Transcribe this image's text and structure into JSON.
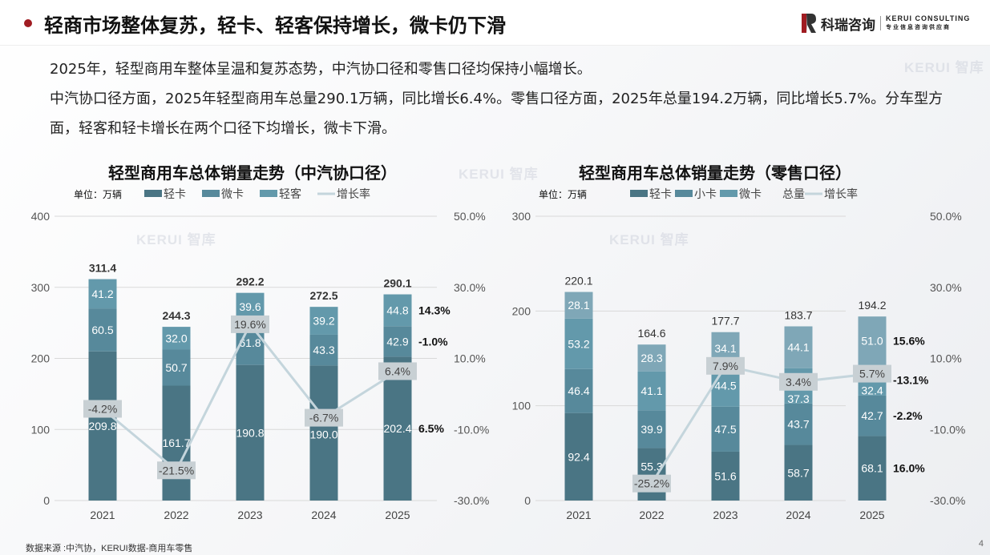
{
  "header": {
    "title": "轻商市场整体复苏，轻卡、轻客保持增长，微卡仍下滑",
    "logo_cn": "科瑞咨询",
    "logo_en": "KERUI CONSULTING",
    "logo_tagline": "专业信息咨询供应商"
  },
  "paragraph": [
    "2025年，轻型商用车整体呈温和复苏态势，中汽协口径和零售口径均保持小幅增长。",
    "中汽协口径方面，2025年轻型商用车总量290.1万辆，同比增长6.4%。零售口径方面，2025年总量194.2万辆，同比增长5.7%。分车型方面，轻客和轻卡增长在两个口径下均增长，微卡下滑。"
  ],
  "watermark": "KERUI 智库",
  "footer": {
    "source": "数据来源 :中汽协，KERUI数据-商用车零售",
    "page": "4"
  },
  "colors": {
    "accent": "#a01c22",
    "seg1": "#4a7584",
    "seg2": "#57899b",
    "seg3": "#6399ab",
    "seg4": "#7fa7b7",
    "line": "#c4d5dc",
    "label_bg": "#c8d0d4"
  },
  "chart_data": [
    {
      "type": "bar",
      "stacked": true,
      "title": "轻型商用车总体销量走势（中汽协口径）",
      "unit": "单位：万辆",
      "categories": [
        "2021",
        "2022",
        "2023",
        "2024",
        "2025"
      ],
      "series": [
        {
          "name": "轻卡",
          "values": [
            209.8,
            161.7,
            190.8,
            190.0,
            202.4
          ]
        },
        {
          "name": "微卡",
          "values": [
            60.5,
            50.7,
            61.8,
            43.3,
            42.9
          ]
        },
        {
          "name": "轻客",
          "values": [
            41.2,
            32.0,
            39.6,
            39.2,
            44.8
          ]
        }
      ],
      "totals": [
        "311.4",
        "244.3",
        "292.2",
        "272.5",
        "290.1"
      ],
      "growth": {
        "name": "增长率",
        "values": [
          -4.2,
          -21.5,
          19.6,
          -6.7,
          6.4
        ]
      },
      "legend": [
        "轻卡",
        "微卡",
        "轻客",
        "增长率"
      ],
      "segment_growth_2025": [
        "6.5%",
        "-1.0%",
        "14.3%"
      ],
      "ylim": [
        0,
        400
      ],
      "yticks": [
        "0",
        "100",
        "200",
        "300",
        "400"
      ],
      "y2lim": [
        -30,
        50
      ],
      "y2ticks": [
        "-30.0%",
        "-10.0%",
        "10.0%",
        "30.0%",
        "50.0%"
      ]
    },
    {
      "type": "bar",
      "stacked": true,
      "title": "轻型商用车总体销量走势（零售口径）",
      "unit": "单位：万辆",
      "categories": [
        "2021",
        "2022",
        "2023",
        "2024",
        "2025"
      ],
      "series": [
        {
          "name": "轻卡",
          "values": [
            92.4,
            55.3,
            51.6,
            58.7,
            68.1
          ]
        },
        {
          "name": "小卡",
          "values": [
            46.4,
            39.9,
            47.5,
            43.7,
            42.7
          ]
        },
        {
          "name": "微卡",
          "values": [
            53.2,
            41.1,
            44.5,
            37.3,
            32.4
          ]
        },
        {
          "name": "",
          "values": [
            28.1,
            28.3,
            34.1,
            44.1,
            51.0
          ]
        }
      ],
      "totals": [
        "220.1",
        "164.6",
        "177.7",
        "183.7",
        "194.2"
      ],
      "growth": {
        "name": "增长率",
        "values": [
          null,
          -25.2,
          7.9,
          3.4,
          5.7
        ]
      },
      "legend": [
        "轻卡",
        "小卡",
        "微卡",
        "总量",
        "增长率"
      ],
      "segment_growth_2025": [
        "16.0%",
        "-2.2%",
        "-13.1%",
        "15.6%"
      ],
      "ylim": [
        0,
        300
      ],
      "yticks": [
        "0",
        "100",
        "200",
        "300"
      ],
      "y2lim": [
        -30,
        50
      ],
      "y2ticks": [
        "-30.0%",
        "-10.0%",
        "10.0%",
        "30.0%",
        "50.0%"
      ]
    }
  ]
}
